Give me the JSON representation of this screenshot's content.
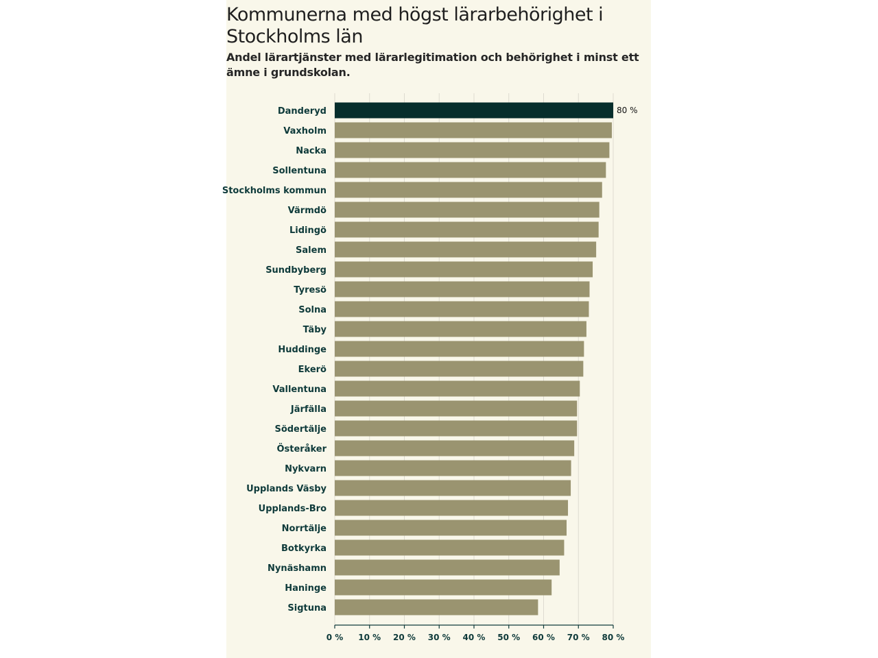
{
  "colors": {
    "background": "#f9f7ea",
    "bar": "#9a9470",
    "highlight_bar": "#072e2c",
    "grid": "#dedbd0",
    "axis": "#0e3a3a"
  },
  "chart_data": {
    "type": "bar",
    "orientation": "horizontal",
    "title": "Kommunerna med högst lärarbehörighet i Stockholms län",
    "subtitle": "Andel lärartjänster med lärarlegitimation och behörighet i minst ett ämne i grundskolan.",
    "categories": [
      "Danderyd",
      "Vaxholm",
      "Nacka",
      "Sollentuna",
      "Stockholms kommun",
      "Värmdö",
      "Lidingö",
      "Salem",
      "Sundbyberg",
      "Tyresö",
      "Solna",
      "Täby",
      "Huddinge",
      "Ekerö",
      "Vallentuna",
      "Järfälla",
      "Södertälje",
      "Österåker",
      "Nykvarn",
      "Upplands Väsby",
      "Upplands-Bro",
      "Norrtälje",
      "Botkyrka",
      "Nynäshamn",
      "Haninge",
      "Sigtuna"
    ],
    "values": [
      80.0,
      79.6,
      78.9,
      77.9,
      76.8,
      76.0,
      75.8,
      75.1,
      74.1,
      73.2,
      73.0,
      72.3,
      71.6,
      71.4,
      70.4,
      69.6,
      69.6,
      68.8,
      67.9,
      67.8,
      67.0,
      66.6,
      65.9,
      64.6,
      62.3,
      58.4
    ],
    "highlight_index": 0,
    "data_labels": [
      {
        "index": 0,
        "text": "80 %"
      }
    ],
    "xlim": [
      0,
      80
    ],
    "x_ticks": [
      0,
      10,
      20,
      30,
      40,
      50,
      60,
      70,
      80
    ],
    "x_tick_labels": [
      "0 %",
      "10 %",
      "20 %",
      "30 %",
      "40 %",
      "50 %",
      "60 %",
      "70 %",
      "80 %"
    ],
    "xlabel": "",
    "ylabel": "",
    "grid": true
  }
}
